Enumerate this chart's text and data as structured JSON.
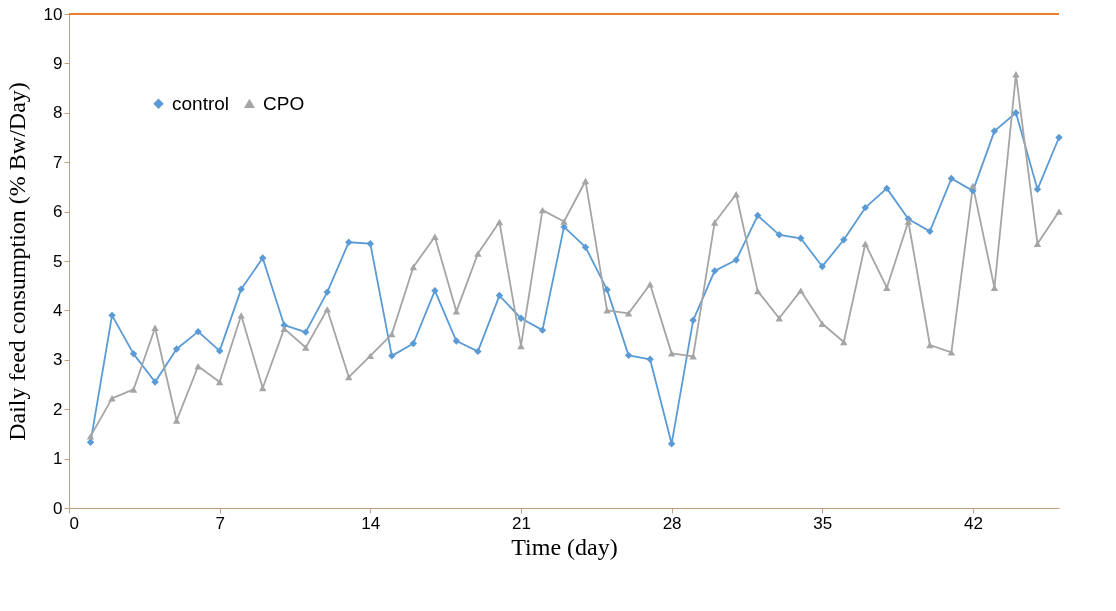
{
  "chart_data": {
    "type": "line",
    "xlabel": "Time (day)",
    "ylabel": "Daily feed consumption  (% Bw/Day)",
    "x": [
      1,
      2,
      3,
      4,
      5,
      6,
      7,
      8,
      9,
      10,
      11,
      12,
      13,
      14,
      15,
      16,
      17,
      18,
      19,
      20,
      21,
      22,
      23,
      24,
      25,
      26,
      27,
      28,
      29,
      30,
      31,
      32,
      33,
      34,
      35,
      36,
      37,
      38,
      39,
      40,
      41,
      42,
      43,
      44,
      45,
      46
    ],
    "series": [
      {
        "name": "control",
        "color": "#5b9bd5",
        "marker": "diamond",
        "values": [
          1.33,
          3.9,
          3.12,
          2.55,
          3.22,
          3.57,
          3.18,
          4.43,
          5.06,
          3.7,
          3.56,
          4.37,
          5.38,
          5.35,
          3.08,
          3.33,
          4.4,
          3.38,
          3.17,
          4.3,
          3.84,
          3.6,
          5.69,
          5.28,
          4.42,
          3.09,
          3.01,
          1.3,
          3.8,
          4.8,
          5.02,
          5.92,
          5.53,
          5.46,
          4.89,
          5.43,
          6.08,
          6.47,
          5.85,
          5.6,
          6.67,
          6.42,
          7.63,
          8.0,
          6.45,
          7.5
        ]
      },
      {
        "name": "CPO",
        "color": "#a5a5a5",
        "marker": "triangle",
        "values": [
          1.45,
          2.22,
          2.4,
          3.65,
          1.77,
          2.87,
          2.55,
          3.9,
          2.43,
          3.63,
          3.25,
          4.02,
          2.65,
          3.08,
          3.52,
          4.88,
          5.49,
          3.98,
          5.15,
          5.79,
          3.28,
          6.03,
          5.8,
          6.62,
          4.0,
          3.94,
          4.53,
          3.13,
          3.07,
          5.78,
          6.35,
          4.39,
          3.84,
          4.4,
          3.73,
          3.36,
          5.35,
          4.46,
          5.8,
          3.3,
          3.15,
          6.52,
          4.46,
          8.78,
          5.35,
          6.0
        ]
      }
    ],
    "xlim": [
      0,
      46
    ],
    "xticks": [
      0,
      7,
      14,
      21,
      28,
      35,
      42
    ],
    "ylim": [
      0,
      10
    ],
    "yticks": [
      0,
      1,
      2,
      3,
      4,
      5,
      6,
      7,
      8,
      9,
      10
    ],
    "ref_lines": [
      {
        "axis": "y",
        "value": 10,
        "label": null,
        "color": "#ed7d31"
      }
    ],
    "grid": false,
    "legend": "top left",
    "line_style": "solid"
  }
}
